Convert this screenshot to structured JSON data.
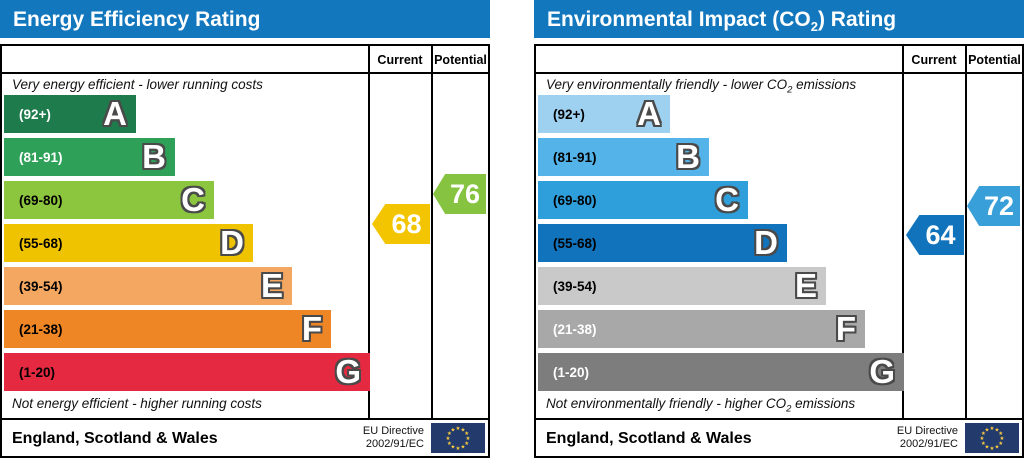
{
  "colors": {
    "header_bg": "#1277bd",
    "border": "#000000",
    "flag_bg": "#233a6d",
    "flag_star": "#f5c93c"
  },
  "panels": [
    {
      "id": "energy-efficiency",
      "title": {
        "pre": "Energy Efficiency Rating",
        "sub": "",
        "post": ""
      },
      "columns": {
        "current": "Current",
        "potential": "Potential"
      },
      "caption_top": {
        "pre": "Very energy efficient - lower running costs",
        "sub": "",
        "post": ""
      },
      "caption_bottom": {
        "pre": "Not energy efficient - higher running costs",
        "sub": "",
        "post": ""
      },
      "bands": [
        {
          "letter": "A",
          "range": "(92+)",
          "lo": 92,
          "hi": 100,
          "color": "#1e7b4b",
          "label_color": "#ffffff"
        },
        {
          "letter": "B",
          "range": "(81-91)",
          "lo": 81,
          "hi": 91,
          "color": "#2fa058",
          "label_color": "#ffffff"
        },
        {
          "letter": "C",
          "range": "(69-80)",
          "lo": 69,
          "hi": 80,
          "color": "#8cc63e",
          "label_color": "#000000"
        },
        {
          "letter": "D",
          "range": "(55-68)",
          "lo": 55,
          "hi": 68,
          "color": "#f0c300",
          "label_color": "#000000"
        },
        {
          "letter": "E",
          "range": "(39-54)",
          "lo": 39,
          "hi": 54,
          "color": "#f3a761",
          "label_color": "#000000"
        },
        {
          "letter": "F",
          "range": "(21-38)",
          "lo": 21,
          "hi": 38,
          "color": "#ee8626",
          "label_color": "#000000"
        },
        {
          "letter": "G",
          "range": "(1-20)",
          "lo": 1,
          "hi": 20,
          "color": "#e52940",
          "label_color": "#000000"
        }
      ],
      "current": {
        "value": 68,
        "color": "#f2c500"
      },
      "potential": {
        "value": 76,
        "color": "#85c341"
      },
      "footer": {
        "region": "England, Scotland & Wales",
        "directive_line1": "EU Directive",
        "directive_line2": "2002/91/EC"
      }
    },
    {
      "id": "environmental-impact",
      "title": {
        "pre": "Environmental Impact (CO",
        "sub": "2",
        "post": ") Rating"
      },
      "columns": {
        "current": "Current",
        "potential": "Potential"
      },
      "caption_top": {
        "pre": "Very environmentally friendly - lower CO",
        "sub": "2",
        "post": " emissions"
      },
      "caption_bottom": {
        "pre": "Not environmentally friendly - higher CO",
        "sub": "2",
        "post": " emissions"
      },
      "bands": [
        {
          "letter": "A",
          "range": "(92+)",
          "lo": 92,
          "hi": 100,
          "color": "#9ed1f0",
          "label_color": "#000000"
        },
        {
          "letter": "B",
          "range": "(81-91)",
          "lo": 81,
          "hi": 91,
          "color": "#54b3e8",
          "label_color": "#000000"
        },
        {
          "letter": "C",
          "range": "(69-80)",
          "lo": 69,
          "hi": 80,
          "color": "#2f9fdb",
          "label_color": "#000000"
        },
        {
          "letter": "D",
          "range": "(55-68)",
          "lo": 55,
          "hi": 68,
          "color": "#1173bb",
          "label_color": "#000000"
        },
        {
          "letter": "E",
          "range": "(39-54)",
          "lo": 39,
          "hi": 54,
          "color": "#c9c9c9",
          "label_color": "#000000"
        },
        {
          "letter": "F",
          "range": "(21-38)",
          "lo": 21,
          "hi": 38,
          "color": "#a8a8a8",
          "label_color": "#ffffff"
        },
        {
          "letter": "G",
          "range": "(1-20)",
          "lo": 1,
          "hi": 20,
          "color": "#7d7d7d",
          "label_color": "#ffffff"
        }
      ],
      "current": {
        "value": 64,
        "color": "#1173bb"
      },
      "potential": {
        "value": 72,
        "color": "#389fd9"
      },
      "footer": {
        "region": "England, Scotland & Wales",
        "directive_line1": "EU Directive",
        "directive_line2": "2002/91/EC"
      }
    }
  ],
  "chart_data": [
    {
      "type": "bar",
      "title": "Energy Efficiency Rating",
      "subtitle_top": "Very energy efficient - lower running costs",
      "subtitle_bottom": "Not energy efficient - higher running costs",
      "categories": [
        "A (92+)",
        "B (81-91)",
        "C (69-80)",
        "D (55-68)",
        "E (39-54)",
        "F (21-38)",
        "G (1-20)"
      ],
      "band_colors": [
        "#1e7b4b",
        "#2fa058",
        "#8cc63e",
        "#f0c300",
        "#f3a761",
        "#ee8626",
        "#e52940"
      ],
      "series": [
        {
          "name": "Current",
          "values": [
            68
          ]
        },
        {
          "name": "Potential",
          "values": [
            76
          ]
        }
      ],
      "value_range": [
        1,
        100
      ],
      "region": "England, Scotland & Wales",
      "directive": "EU Directive 2002/91/EC"
    },
    {
      "type": "bar",
      "title": "Environmental Impact (CO2) Rating",
      "subtitle_top": "Very environmentally friendly - lower CO2 emissions",
      "subtitle_bottom": "Not environmentally friendly - higher CO2 emissions",
      "categories": [
        "A (92+)",
        "B (81-91)",
        "C (69-80)",
        "D (55-68)",
        "E (39-54)",
        "F (21-38)",
        "G (1-20)"
      ],
      "band_colors": [
        "#9ed1f0",
        "#54b3e8",
        "#2f9fdb",
        "#1173bb",
        "#c9c9c9",
        "#a8a8a8",
        "#7d7d7d"
      ],
      "series": [
        {
          "name": "Current",
          "values": [
            64
          ]
        },
        {
          "name": "Potential",
          "values": [
            72
          ]
        }
      ],
      "value_range": [
        1,
        100
      ],
      "region": "England, Scotland & Wales",
      "directive": "EU Directive 2002/91/EC"
    }
  ]
}
